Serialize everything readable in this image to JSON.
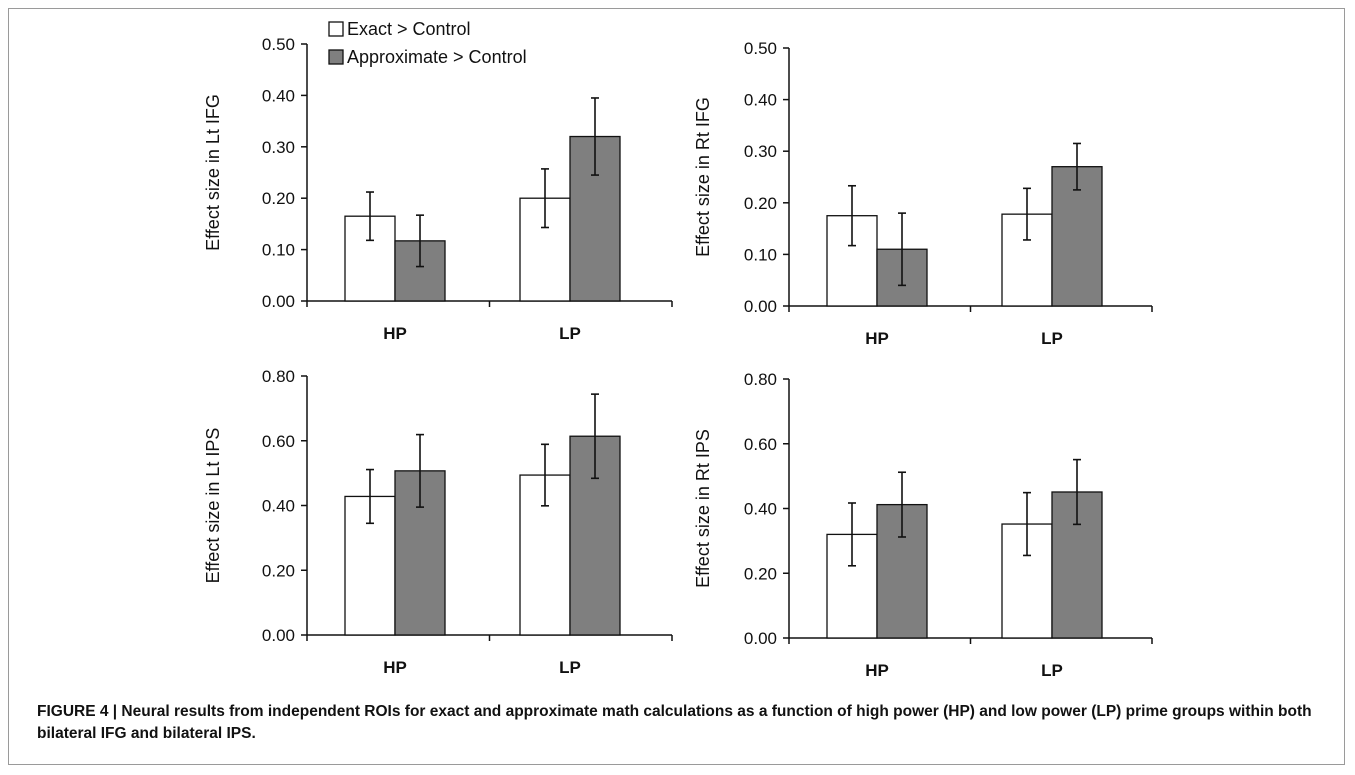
{
  "figure": {
    "caption": "FIGURE 4 | Neural results from independent ROIs for exact and approximate math calculations as a function of high power (HP) and low power (LP) prime groups within both bilateral IFG and bilateral IPS."
  },
  "colors": {
    "exact": "#ffffff",
    "approximate": "#7f7f7f",
    "axis": "#111111"
  },
  "chart_data": [
    {
      "type": "bar",
      "ylabel": "Effect size in Lt IFG",
      "categories": [
        "HP",
        "LP"
      ],
      "ylim": [
        0,
        0.5
      ],
      "yticks": [
        "0.00",
        "0.10",
        "0.20",
        "0.30",
        "0.40",
        "0.50"
      ],
      "legend": "top-left",
      "series": [
        {
          "name": "Exact > Control",
          "values": [
            0.165,
            0.2
          ],
          "error": [
            0.047,
            0.057
          ]
        },
        {
          "name": "Approximate > Control",
          "values": [
            0.117,
            0.32
          ],
          "error": [
            0.05,
            0.075
          ]
        }
      ]
    },
    {
      "type": "bar",
      "ylabel": "Effect size in Rt IFG",
      "categories": [
        "HP",
        "LP"
      ],
      "ylim": [
        0,
        0.5
      ],
      "yticks": [
        "0.00",
        "0.10",
        "0.20",
        "0.30",
        "0.40",
        "0.50"
      ],
      "series": [
        {
          "values": [
            0.175,
            0.178
          ],
          "error": [
            0.058,
            0.05
          ]
        },
        {
          "values": [
            0.11,
            0.27
          ],
          "error": [
            0.07,
            0.045
          ]
        }
      ]
    },
    {
      "type": "bar",
      "ylabel": "Effect size in Lt IPS",
      "categories": [
        "HP",
        "LP"
      ],
      "ylim": [
        0,
        0.8
      ],
      "yticks": [
        "0.00",
        "0.20",
        "0.40",
        "0.60",
        "0.80"
      ],
      "series": [
        {
          "values": [
            0.428,
            0.494
          ],
          "error": [
            0.083,
            0.095
          ]
        },
        {
          "values": [
            0.507,
            0.614
          ],
          "error": [
            0.112,
            0.13
          ]
        }
      ]
    },
    {
      "type": "bar",
      "ylabel": "Effect size in Rt IPS",
      "categories": [
        "HP",
        "LP"
      ],
      "ylim": [
        0,
        0.8
      ],
      "yticks": [
        "0.00",
        "0.20",
        "0.40",
        "0.60",
        "0.80"
      ],
      "series": [
        {
          "values": [
            0.32,
            0.352
          ],
          "error": [
            0.097,
            0.097
          ]
        },
        {
          "values": [
            0.412,
            0.451
          ],
          "error": [
            0.1,
            0.1
          ]
        }
      ]
    }
  ]
}
